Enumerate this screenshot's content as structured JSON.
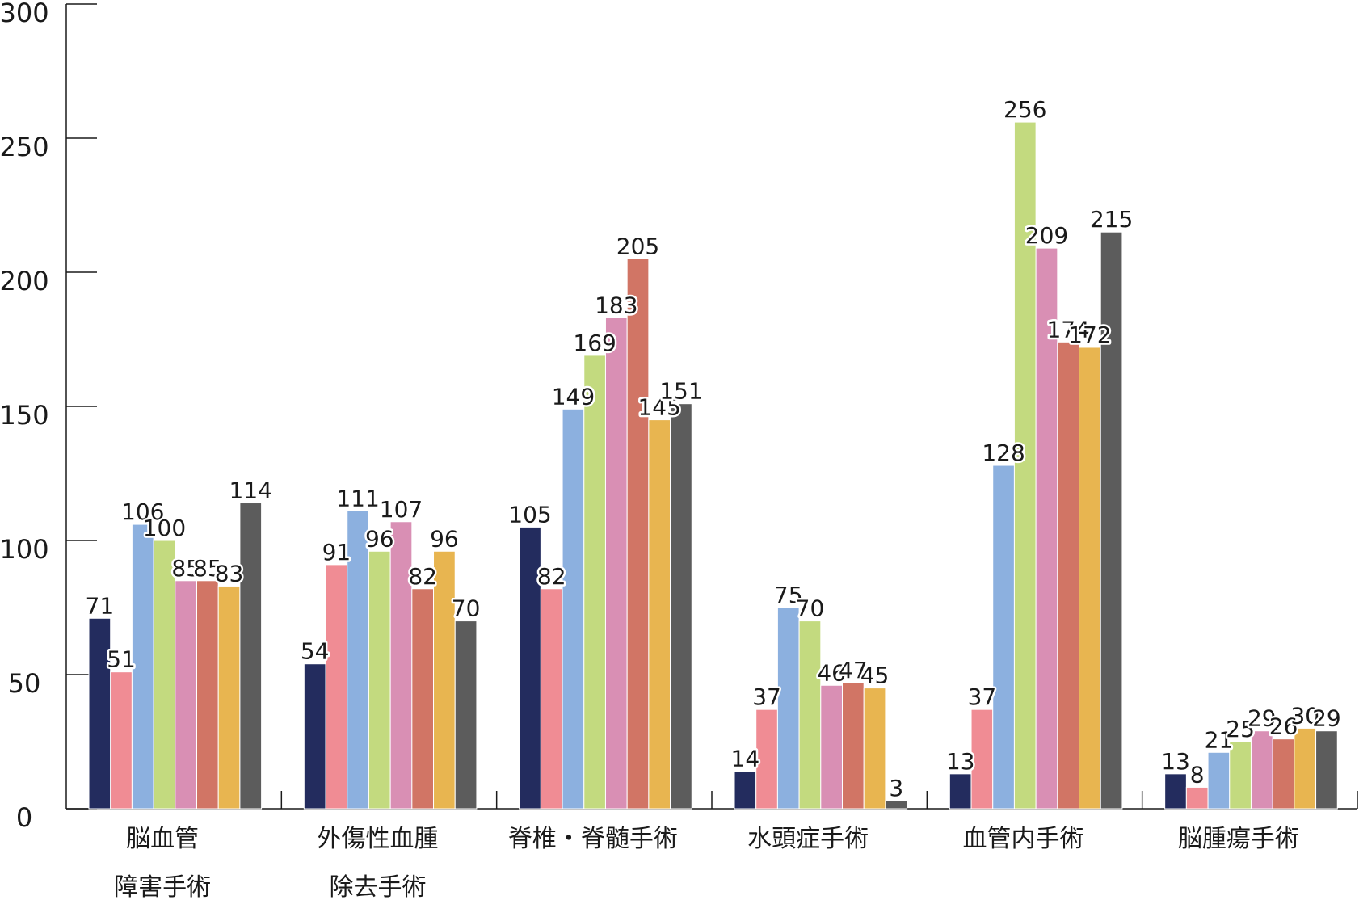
{
  "chart_data": {
    "type": "bar",
    "title": "",
    "xlabel": "",
    "ylabel": "",
    "ylim": [
      0,
      300
    ],
    "yticks": [
      "0",
      "50",
      "100",
      "150",
      "200",
      "250",
      "300"
    ],
    "grid": false,
    "legend": "none",
    "categories": [
      [
        "脳血管",
        "障害手術"
      ],
      [
        "外傷性血腫",
        "除去手術"
      ],
      [
        "脊椎・脊髄手術"
      ],
      [
        "水頭症手術"
      ],
      [
        "血管内手術"
      ],
      [
        "脳腫瘍手術"
      ]
    ],
    "series_colors": [
      "#232c5e",
      "#f08c94",
      "#8cb0df",
      "#c3da7f",
      "#d98fb4",
      "#d17565",
      "#e8b550",
      "#5c5c5c"
    ],
    "series": [
      {
        "values": [
          71,
          54,
          105,
          14,
          13,
          13
        ]
      },
      {
        "values": [
          51,
          91,
          82,
          37,
          37,
          8
        ]
      },
      {
        "values": [
          106,
          111,
          149,
          75,
          128,
          21
        ]
      },
      {
        "values": [
          100,
          96,
          169,
          70,
          256,
          25
        ]
      },
      {
        "values": [
          85,
          107,
          183,
          46,
          209,
          29
        ]
      },
      {
        "values": [
          85,
          82,
          205,
          47,
          174,
          26
        ]
      },
      {
        "values": [
          83,
          96,
          145,
          45,
          172,
          30
        ]
      },
      {
        "values": [
          114,
          70,
          151,
          3,
          215,
          29
        ]
      }
    ]
  }
}
